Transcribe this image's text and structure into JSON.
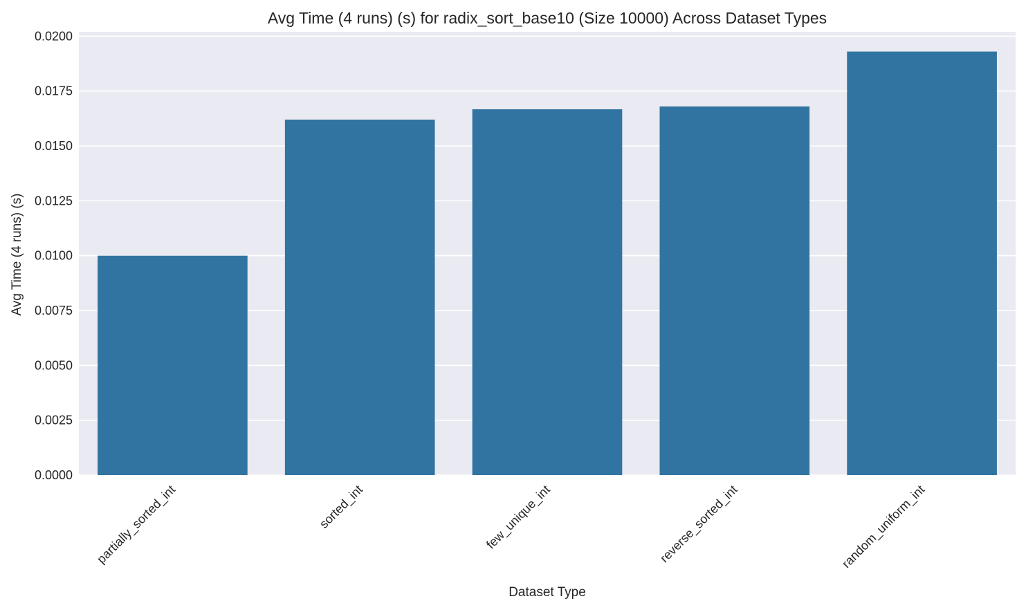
{
  "chart_data": {
    "type": "bar",
    "title": "Avg Time (4 runs) (s) for radix_sort_base10 (Size 10000) Across Dataset Types",
    "xlabel": "Dataset Type",
    "ylabel": "Avg Time (4 runs) (s)",
    "categories": [
      "partially_sorted_int",
      "sorted_int",
      "few_unique_int",
      "reverse_sorted_int",
      "random_uniform_int"
    ],
    "values": [
      0.01,
      0.0162,
      0.01667,
      0.0168,
      0.0193
    ],
    "ylim": [
      0,
      0.0202
    ],
    "yticks": [
      "0.0000",
      "0.0025",
      "0.0050",
      "0.0075",
      "0.0100",
      "0.0125",
      "0.0150",
      "0.0175",
      "0.0200"
    ],
    "grid": true,
    "bar_color": "#3274a1",
    "background_color": "#eaeaf2",
    "grid_color": "#ffffff"
  }
}
